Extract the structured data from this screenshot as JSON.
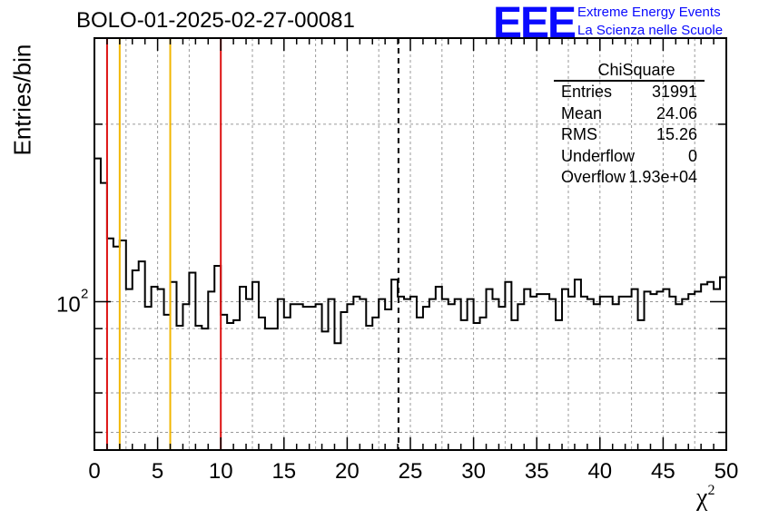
{
  "title": "BOLO-01-2025-02-27-00081",
  "logo": {
    "big": "EEE",
    "line1": "Extreme Energy Events",
    "line2": "La Scienza nelle Scuole"
  },
  "stats": {
    "title": "ChiSquare",
    "rows": [
      {
        "label": "Entries",
        "value": "31991"
      },
      {
        "label": "Mean",
        "value": "24.06"
      },
      {
        "label": "RMS",
        "value": "15.26"
      },
      {
        "label": "Underflow",
        "value": "0"
      },
      {
        "label": "Overflow",
        "value": "1.93e+04"
      }
    ]
  },
  "chart_data": {
    "type": "histogram",
    "xlabel": "χ",
    "xlabel_sup": "2",
    "ylabel": "Entries/bin",
    "xlim": [
      0,
      50
    ],
    "ylim": [
      56,
      280
    ],
    "yscale": "log",
    "x_ticks": [
      0,
      5,
      10,
      15,
      20,
      25,
      30,
      35,
      40,
      45,
      50
    ],
    "y_tick_label": {
      "base": "10",
      "exp": "2",
      "value": 100
    },
    "bin_width": 0.5,
    "values": [
      175,
      159,
      128,
      124,
      127,
      105,
      113,
      117,
      98,
      106,
      105,
      95,
      108,
      91,
      99,
      112,
      91,
      90,
      104,
      115,
      95,
      92,
      93,
      106,
      101,
      108,
      94,
      90,
      90,
      101,
      94,
      99,
      99,
      98,
      98,
      99,
      89,
      101,
      85,
      96,
      99,
      102,
      101,
      91,
      94,
      101,
      97,
      109,
      102,
      101,
      102,
      94,
      98,
      101,
      106,
      101,
      99,
      101,
      93,
      101,
      92,
      94,
      105,
      101,
      98,
      108,
      93,
      99,
      105,
      102,
      103,
      103,
      101,
      93,
      105,
      102,
      109,
      102,
      101,
      99,
      102,
      102,
      99,
      102,
      102,
      105,
      93,
      104,
      103,
      104,
      105,
      102,
      99,
      101,
      103,
      104,
      107,
      108,
      105,
      110
    ],
    "vlines": [
      {
        "x": 1,
        "color": "#dd1111",
        "style": "solid"
      },
      {
        "x": 2,
        "color": "#f2b600",
        "style": "solid"
      },
      {
        "x": 6,
        "color": "#f2b600",
        "style": "solid"
      },
      {
        "x": 10,
        "color": "#dd1111",
        "style": "solid"
      },
      {
        "x": 24.06,
        "color": "#000000",
        "style": "dashed"
      }
    ],
    "grid": true
  }
}
